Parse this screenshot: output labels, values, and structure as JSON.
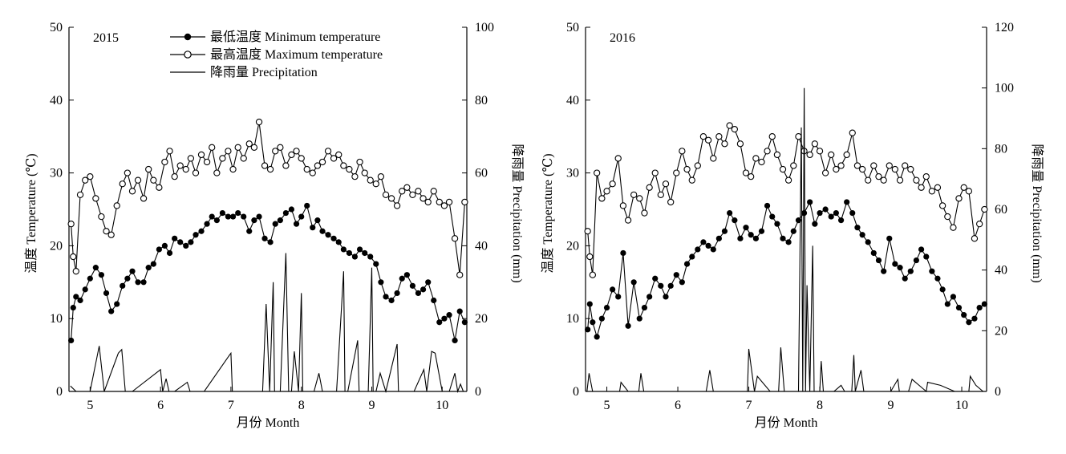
{
  "chart_data": [
    {
      "type": "line",
      "panel_label": "2015",
      "xlabel": "月份 Month",
      "ylabel_left": "温度 Temperature (℃)",
      "ylabel_right": "降雨量 Precipitation (mm)",
      "xlim": [
        4.7,
        10.35
      ],
      "ylim_left": [
        0,
        50
      ],
      "ylim_right": [
        0,
        100
      ],
      "xticks": [
        5,
        6,
        7,
        8,
        9,
        10
      ],
      "yticks_left": [
        0,
        10,
        20,
        30,
        40,
        50
      ],
      "yticks_right": [
        0,
        20,
        40,
        60,
        80,
        100
      ],
      "legend": {
        "placement": "top-center",
        "entries": [
          "最低温度 Minimum temperature",
          "最高温度 Maximum temperature",
          "降雨量 Precipitation"
        ]
      },
      "series": [
        {
          "name": "最低温度 Minimum temperature",
          "marker": "filled-circle",
          "x": [
            4.73,
            4.76,
            4.8,
            4.86,
            4.93,
            5.0,
            5.08,
            5.16,
            5.23,
            5.3,
            5.38,
            5.46,
            5.53,
            5.6,
            5.68,
            5.76,
            5.83,
            5.9,
            5.98,
            6.06,
            6.13,
            6.2,
            6.28,
            6.36,
            6.43,
            6.5,
            6.58,
            6.66,
            6.73,
            6.8,
            6.88,
            6.96,
            7.03,
            7.1,
            7.18,
            7.26,
            7.33,
            7.4,
            7.48,
            7.56,
            7.63,
            7.7,
            7.78,
            7.86,
            7.93,
            8.0,
            8.08,
            8.16,
            8.23,
            8.3,
            8.38,
            8.46,
            8.53,
            8.6,
            8.68,
            8.76,
            8.83,
            8.9,
            8.98,
            9.06,
            9.13,
            9.2,
            9.28,
            9.36,
            9.43,
            9.5,
            9.58,
            9.66,
            9.73,
            9.8,
            9.88,
            9.96,
            10.03,
            10.1,
            10.18,
            10.25,
            10.32
          ],
          "values": [
            7.0,
            11.5,
            13.0,
            12.5,
            14.0,
            15.5,
            17.0,
            16.0,
            13.5,
            11.0,
            12.0,
            14.5,
            15.5,
            16.5,
            15.0,
            15.0,
            17.0,
            17.5,
            19.5,
            20.0,
            19.0,
            21.0,
            20.5,
            20.0,
            20.5,
            21.5,
            22.0,
            23.0,
            24.0,
            23.5,
            24.5,
            24.0,
            24.0,
            24.5,
            24.0,
            22.0,
            23.5,
            24.0,
            21.0,
            20.5,
            23.0,
            23.5,
            24.5,
            25.0,
            23.0,
            24.0,
            25.5,
            22.5,
            23.5,
            22.0,
            21.5,
            21.0,
            20.5,
            19.5,
            19.0,
            18.5,
            19.5,
            19.0,
            18.5,
            17.5,
            15.0,
            13.0,
            12.5,
            13.5,
            15.5,
            16.0,
            14.5,
            13.5,
            14.0,
            15.0,
            12.5,
            9.5,
            10.0,
            10.5,
            7.0,
            11.0,
            9.5
          ]
        },
        {
          "name": "最高温度 Maximum temperature",
          "marker": "open-circle",
          "x": [
            4.73,
            4.76,
            4.8,
            4.86,
            4.93,
            5.0,
            5.08,
            5.16,
            5.23,
            5.3,
            5.38,
            5.46,
            5.53,
            5.6,
            5.68,
            5.76,
            5.83,
            5.9,
            5.98,
            6.06,
            6.13,
            6.2,
            6.28,
            6.36,
            6.43,
            6.5,
            6.58,
            6.66,
            6.73,
            6.8,
            6.88,
            6.96,
            7.03,
            7.1,
            7.18,
            7.26,
            7.33,
            7.4,
            7.48,
            7.56,
            7.63,
            7.7,
            7.78,
            7.86,
            7.93,
            8.0,
            8.08,
            8.16,
            8.23,
            8.3,
            8.38,
            8.46,
            8.53,
            8.6,
            8.68,
            8.76,
            8.83,
            8.9,
            8.98,
            9.06,
            9.13,
            9.2,
            9.28,
            9.36,
            9.43,
            9.5,
            9.58,
            9.66,
            9.73,
            9.8,
            9.88,
            9.96,
            10.03,
            10.1,
            10.18,
            10.25,
            10.32
          ],
          "values": [
            23.0,
            18.5,
            16.5,
            27.0,
            29.0,
            29.5,
            26.5,
            24.0,
            22.0,
            21.5,
            25.5,
            28.5,
            30.0,
            27.5,
            29.0,
            26.5,
            30.5,
            29.0,
            28.0,
            31.5,
            33.0,
            29.5,
            31.0,
            30.5,
            32.0,
            30.0,
            32.5,
            31.5,
            33.5,
            30.0,
            32.0,
            33.0,
            30.5,
            33.5,
            32.0,
            34.0,
            33.5,
            37.0,
            31.0,
            30.5,
            33.0,
            33.5,
            31.0,
            32.5,
            33.0,
            32.0,
            30.5,
            30.0,
            31.0,
            31.5,
            33.0,
            32.0,
            32.5,
            31.0,
            30.5,
            29.5,
            31.5,
            30.0,
            29.0,
            28.5,
            29.5,
            27.0,
            26.5,
            25.5,
            27.5,
            28.0,
            27.0,
            27.5,
            26.5,
            26.0,
            27.5,
            26.0,
            25.5,
            26.0,
            21.0,
            16.0,
            26.0
          ]
        },
        {
          "name": "降雨量 Precipitation",
          "marker": "none",
          "axis": "right",
          "x": [
            4.72,
            4.8,
            5.0,
            5.13,
            5.2,
            5.4,
            5.45,
            5.5,
            5.6,
            6.0,
            6.03,
            6.08,
            6.12,
            6.2,
            6.38,
            6.42,
            6.62,
            6.98,
            7.0,
            7.02,
            7.2,
            7.45,
            7.5,
            7.55,
            7.6,
            7.62,
            7.66,
            7.7,
            7.78,
            7.82,
            7.86,
            7.9,
            7.96,
            8.0,
            8.02,
            8.05,
            8.18,
            8.25,
            8.3,
            8.5,
            8.6,
            8.62,
            8.66,
            8.8,
            8.82,
            8.88,
            8.95,
            9.0,
            9.02,
            9.06,
            9.12,
            9.2,
            9.36,
            9.38,
            9.42,
            9.6,
            9.74,
            9.78,
            9.85,
            9.9,
            10.0,
            10.1,
            10.18,
            10.22,
            10.26,
            10.3
          ],
          "values": [
            1.5,
            0.0,
            0.0,
            12.5,
            0.0,
            10.5,
            11.5,
            0.0,
            0.0,
            6.0,
            0.0,
            3.5,
            0.0,
            0.0,
            2.5,
            0.0,
            0.0,
            10.0,
            10.5,
            0.0,
            0.0,
            0.0,
            24.0,
            0.0,
            30.0,
            0.0,
            0.0,
            0.0,
            38.0,
            0.0,
            0.0,
            11.0,
            0.0,
            27.0,
            0.0,
            0.0,
            0.0,
            5.0,
            0.0,
            0.0,
            33.0,
            0.0,
            0.0,
            14.0,
            0.0,
            0.0,
            0.0,
            34.0,
            0.0,
            0.0,
            5.0,
            0.0,
            13.0,
            0.0,
            0.0,
            0.0,
            6.0,
            0.0,
            11.0,
            10.5,
            0.0,
            0.0,
            5.0,
            0.0,
            2.0,
            0.0
          ]
        }
      ]
    },
    {
      "type": "line",
      "panel_label": "2016",
      "xlabel": "月份 Month",
      "ylabel_left": "温度 Temperature (℃)",
      "ylabel_right": "降雨量 Precipitation (mm)",
      "xlim": [
        4.7,
        10.35
      ],
      "ylim_left": [
        0,
        50
      ],
      "ylim_right": [
        0,
        120
      ],
      "xticks": [
        5,
        6,
        7,
        8,
        9,
        10
      ],
      "yticks_left": [
        0,
        10,
        20,
        30,
        40,
        50
      ],
      "yticks_right": [
        0,
        20,
        40,
        60,
        80,
        100,
        120
      ],
      "series": [
        {
          "name": "最低温度 Minimum temperature",
          "marker": "filled-circle",
          "x": [
            4.73,
            4.76,
            4.8,
            4.86,
            4.93,
            5.0,
            5.08,
            5.16,
            5.23,
            5.3,
            5.38,
            5.46,
            5.53,
            5.6,
            5.68,
            5.76,
            5.83,
            5.9,
            5.98,
            6.06,
            6.13,
            6.2,
            6.28,
            6.36,
            6.43,
            6.5,
            6.58,
            6.66,
            6.73,
            6.8,
            6.88,
            6.96,
            7.03,
            7.1,
            7.18,
            7.26,
            7.33,
            7.4,
            7.48,
            7.56,
            7.63,
            7.7,
            7.78,
            7.86,
            7.93,
            8.0,
            8.08,
            8.16,
            8.23,
            8.3,
            8.38,
            8.46,
            8.53,
            8.6,
            8.68,
            8.76,
            8.83,
            8.9,
            8.98,
            9.06,
            9.13,
            9.2,
            9.28,
            9.36,
            9.43,
            9.5,
            9.58,
            9.66,
            9.73,
            9.8,
            9.88,
            9.96,
            10.03,
            10.1,
            10.18,
            10.25,
            10.32
          ],
          "values": [
            8.5,
            12.0,
            9.5,
            7.5,
            10.0,
            11.5,
            14.0,
            13.0,
            19.0,
            9.0,
            15.0,
            10.0,
            11.5,
            13.0,
            15.5,
            14.5,
            13.0,
            14.5,
            16.0,
            15.0,
            17.5,
            18.5,
            19.5,
            20.5,
            20.0,
            19.5,
            21.0,
            22.0,
            24.5,
            23.5,
            21.0,
            22.5,
            21.5,
            21.0,
            22.0,
            25.5,
            24.0,
            23.0,
            21.0,
            20.5,
            22.0,
            23.5,
            24.5,
            26.0,
            23.0,
            24.5,
            25.0,
            24.0,
            24.5,
            23.5,
            26.0,
            24.5,
            22.5,
            21.5,
            20.5,
            19.0,
            18.0,
            16.5,
            21.0,
            17.5,
            17.0,
            15.5,
            16.5,
            18.0,
            19.5,
            18.5,
            16.5,
            15.5,
            14.0,
            12.0,
            13.0,
            11.5,
            10.5,
            9.5,
            10.0,
            11.5,
            12.0
          ]
        },
        {
          "name": "最高温度 Maximum temperature",
          "marker": "open-circle",
          "x": [
            4.73,
            4.76,
            4.8,
            4.86,
            4.93,
            5.0,
            5.08,
            5.16,
            5.23,
            5.3,
            5.38,
            5.46,
            5.53,
            5.6,
            5.68,
            5.76,
            5.83,
            5.9,
            5.98,
            6.06,
            6.13,
            6.2,
            6.28,
            6.36,
            6.43,
            6.5,
            6.58,
            6.66,
            6.73,
            6.8,
            6.88,
            6.96,
            7.03,
            7.1,
            7.18,
            7.26,
            7.33,
            7.4,
            7.48,
            7.56,
            7.63,
            7.7,
            7.78,
            7.86,
            7.93,
            8.0,
            8.08,
            8.16,
            8.23,
            8.3,
            8.38,
            8.46,
            8.53,
            8.6,
            8.68,
            8.76,
            8.83,
            8.9,
            8.98,
            9.06,
            9.13,
            9.2,
            9.28,
            9.36,
            9.43,
            9.5,
            9.58,
            9.66,
            9.73,
            9.8,
            9.88,
            9.96,
            10.03,
            10.1,
            10.18,
            10.25,
            10.32
          ],
          "values": [
            22.0,
            18.5,
            16.0,
            30.0,
            26.5,
            27.5,
            28.5,
            32.0,
            25.5,
            23.5,
            27.0,
            26.5,
            24.5,
            28.0,
            30.0,
            27.0,
            28.5,
            26.0,
            30.0,
            33.0,
            30.5,
            29.0,
            31.0,
            35.0,
            34.5,
            32.0,
            35.0,
            34.0,
            36.5,
            36.0,
            34.0,
            30.0,
            29.5,
            32.0,
            31.5,
            33.0,
            35.0,
            32.5,
            30.5,
            29.0,
            31.0,
            35.0,
            33.0,
            32.5,
            34.0,
            33.0,
            30.0,
            32.5,
            30.5,
            31.0,
            32.5,
            35.5,
            31.0,
            30.5,
            29.0,
            31.0,
            29.5,
            29.0,
            31.0,
            30.5,
            29.0,
            31.0,
            30.5,
            29.0,
            28.0,
            29.5,
            27.5,
            28.0,
            25.5,
            24.0,
            22.5,
            26.5,
            28.0,
            27.5,
            21.0,
            23.0,
            25.0
          ]
        },
        {
          "name": "降雨量 Precipitation",
          "marker": "none",
          "axis": "right",
          "x": [
            4.72,
            4.75,
            4.8,
            4.9,
            5.0,
            5.18,
            5.2,
            5.3,
            5.45,
            5.48,
            5.52,
            5.6,
            6.15,
            6.3,
            6.4,
            6.45,
            6.5,
            6.8,
            6.9,
            6.95,
            6.98,
            7.0,
            7.08,
            7.12,
            7.3,
            7.42,
            7.45,
            7.5,
            7.7,
            7.74,
            7.76,
            7.78,
            7.8,
            7.82,
            7.86,
            7.9,
            7.92,
            7.95,
            8.0,
            8.02,
            8.05,
            8.08,
            8.2,
            8.3,
            8.35,
            8.45,
            8.48,
            8.5,
            8.58,
            8.62,
            8.7,
            9.0,
            9.1,
            9.12,
            9.25,
            9.3,
            9.5,
            9.52,
            9.7,
            9.9,
            10.1,
            10.12,
            10.2,
            10.3
          ],
          "values": [
            0.0,
            6.0,
            0.0,
            0.0,
            0.0,
            0.0,
            3.0,
            0.0,
            0.0,
            6.0,
            0.0,
            0.0,
            0.0,
            0.0,
            0.0,
            7.0,
            0.0,
            0.0,
            0.0,
            0.0,
            0.0,
            14.0,
            0.0,
            5.0,
            0.0,
            0.0,
            14.5,
            0.0,
            0.0,
            87.0,
            0.0,
            100.0,
            0.0,
            35.0,
            0.0,
            48.0,
            0.0,
            0.0,
            0.0,
            10.0,
            0.0,
            0.0,
            0.0,
            2.0,
            0.0,
            0.0,
            12.0,
            0.0,
            7.0,
            0.0,
            0.0,
            0.0,
            4.0,
            0.0,
            0.0,
            4.0,
            0.0,
            3.0,
            2.0,
            0.0,
            0.0,
            5.0,
            2.0,
            0.0
          ]
        }
      ]
    }
  ]
}
